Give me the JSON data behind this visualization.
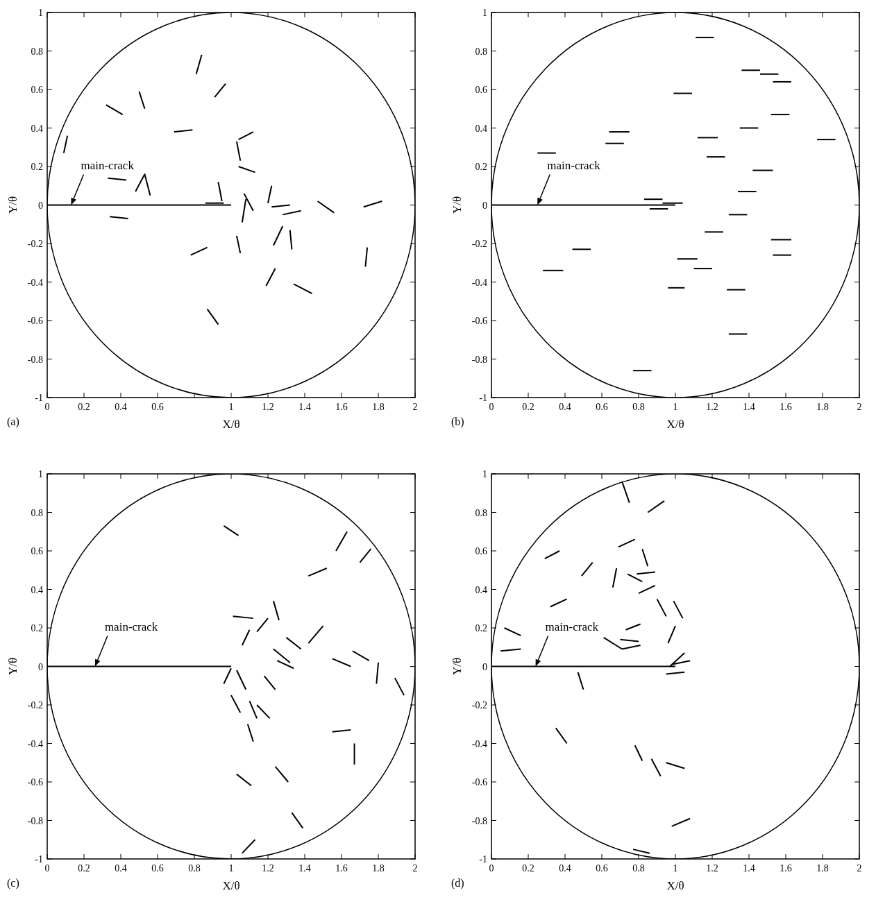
{
  "chart_data": [
    {
      "type": "line",
      "xlabel": "X/θ",
      "ylabel": "Y/θ",
      "xlim": [
        0,
        2
      ],
      "ylim": [
        -1,
        1
      ],
      "xticks": [
        0,
        0.2,
        0.4,
        0.6,
        {
          "value": 0.8,
          "label": null
        },
        1,
        1.2,
        1.4,
        1.6,
        1.8,
        2
      ],
      "yticks": [
        -1,
        -0.8,
        -0.6,
        -0.4,
        -0.2,
        0,
        0.2,
        0.4,
        0.6,
        0.8,
        1
      ],
      "series": [
        {
          "color": "#000000",
          "x": [
            0,
            1
          ],
          "values": [
            0,
            0
          ]
        },
        {
          "color": "#000000",
          "x": [
            0.81,
            0.84
          ],
          "values": [
            0.68,
            0.78
          ]
        },
        {
          "color": "#000000",
          "x": [
            0.91,
            0.97
          ],
          "values": [
            0.56,
            0.63
          ]
        },
        {
          "color": "#000000",
          "x": [
            0.5,
            0.53
          ],
          "values": [
            0.59,
            0.5
          ]
        },
        {
          "color": "#000000",
          "x": [
            0.32,
            0.41
          ],
          "values": [
            0.52,
            0.47
          ]
        },
        {
          "color": "#000000",
          "x": [
            0.69,
            0.79
          ],
          "values": [
            0.38,
            0.39
          ]
        },
        {
          "color": "#000000",
          "x": [
            1.04,
            1.12
          ],
          "values": [
            0.34,
            0.38
          ]
        },
        {
          "color": "#000000",
          "x": [
            1.03,
            1.05
          ],
          "values": [
            0.33,
            0.23
          ]
        },
        {
          "color": "#000000",
          "x": [
            1.04,
            1.13
          ],
          "values": [
            0.2,
            0.17
          ]
        },
        {
          "color": "#000000",
          "x": [
            0.11,
            0.09
          ],
          "values": [
            0.36,
            0.27
          ]
        },
        {
          "color": "#000000",
          "x": [
            0.33,
            0.43
          ],
          "values": [
            0.14,
            0.13
          ]
        },
        {
          "color": "#000000",
          "x": [
            0.48,
            0.53,
            0.56
          ],
          "values": [
            0.07,
            0.16,
            0.05
          ]
        },
        {
          "color": "#000000",
          "x": [
            0.93,
            0.95
          ],
          "values": [
            0.12,
            0.02
          ]
        },
        {
          "color": "#000000",
          "x": [
            0.86,
            0.96
          ],
          "values": [
            0.01,
            0.01
          ]
        },
        {
          "color": "#000000",
          "x": [
            0.34,
            0.44
          ],
          "values": [
            -0.06,
            -0.07
          ]
        },
        {
          "color": "#000000",
          "x": [
            1.07,
            1.12
          ],
          "values": [
            0.06,
            -0.03
          ]
        },
        {
          "color": "#000000",
          "x": [
            1.08,
            1.06
          ],
          "values": [
            0.03,
            -0.09
          ]
        },
        {
          "color": "#000000",
          "x": [
            1.22,
            1.2
          ],
          "values": [
            0.1,
            0.01
          ]
        },
        {
          "color": "#000000",
          "x": [
            1.22,
            1.32
          ],
          "values": [
            -0.01,
            0
          ]
        },
        {
          "color": "#000000",
          "x": [
            1.28,
            1.38
          ],
          "values": [
            -0.05,
            -0.03
          ]
        },
        {
          "color": "#000000",
          "x": [
            1.47,
            1.56
          ],
          "values": [
            0.02,
            -0.04
          ]
        },
        {
          "color": "#000000",
          "x": [
            1.72,
            1.82
          ],
          "values": [
            -0.01,
            0.02
          ]
        },
        {
          "color": "#000000",
          "x": [
            1.03,
            1.05
          ],
          "values": [
            -0.16,
            -0.25
          ]
        },
        {
          "color": "#000000",
          "x": [
            0.78,
            0.87
          ],
          "values": [
            -0.26,
            -0.22
          ]
        },
        {
          "color": "#000000",
          "x": [
            1.28,
            1.23
          ],
          "values": [
            -0.11,
            -0.21
          ]
        },
        {
          "color": "#000000",
          "x": [
            1.32,
            1.33
          ],
          "values": [
            -0.13,
            -0.23
          ]
        },
        {
          "color": "#000000",
          "x": [
            1.74,
            1.73
          ],
          "values": [
            -0.22,
            -0.32
          ]
        },
        {
          "color": "#000000",
          "x": [
            1.24,
            1.19
          ],
          "values": [
            -0.33,
            -0.42
          ]
        },
        {
          "color": "#000000",
          "x": [
            1.34,
            1.44
          ],
          "values": [
            -0.41,
            -0.46
          ]
        },
        {
          "color": "#000000",
          "x": [
            0.87,
            0.93
          ],
          "values": [
            -0.54,
            -0.62
          ]
        }
      ],
      "annotations": [
        {
          "text": "main-crack",
          "x": 0.13,
          "y": 0
        },
        "(a)"
      ]
    },
    {
      "type": "line",
      "xlabel": "X/θ",
      "ylabel": "Y/θ",
      "xlim": [
        0,
        2
      ],
      "ylim": [
        -1,
        1
      ],
      "xticks": [
        0,
        0.2,
        0.4,
        0.6,
        0.8,
        1,
        1.2,
        1.4,
        1.6,
        1.8,
        2
      ],
      "yticks": [
        -1,
        -0.8,
        -0.6,
        -0.4,
        -0.2,
        0,
        0.2,
        0.4,
        0.6,
        0.8,
        1
      ],
      "series": [
        {
          "color": "#000000",
          "x": [
            0,
            1
          ],
          "values": [
            0,
            0
          ]
        },
        {
          "color": "#000000",
          "x": [
            1.11,
            1.21
          ],
          "values": [
            0.87,
            0.87
          ]
        },
        {
          "color": "#000000",
          "x": [
            1.36,
            1.46
          ],
          "values": [
            0.7,
            0.7
          ]
        },
        {
          "color": "#000000",
          "x": [
            1.46,
            1.56
          ],
          "values": [
            0.68,
            0.68
          ]
        },
        {
          "color": "#000000",
          "x": [
            1.53,
            1.63
          ],
          "values": [
            0.64,
            0.64
          ]
        },
        {
          "color": "#000000",
          "x": [
            0.99,
            1.09
          ],
          "values": [
            0.58,
            0.58
          ]
        },
        {
          "color": "#000000",
          "x": [
            1.52,
            1.62
          ],
          "values": [
            0.47,
            0.47
          ]
        },
        {
          "color": "#000000",
          "x": [
            0.64,
            0.75
          ],
          "values": [
            0.38,
            0.38
          ]
        },
        {
          "color": "#000000",
          "x": [
            1.35,
            1.45
          ],
          "values": [
            0.4,
            0.4
          ]
        },
        {
          "color": "#000000",
          "x": [
            1.12,
            1.23
          ],
          "values": [
            0.35,
            0.35
          ]
        },
        {
          "color": "#000000",
          "x": [
            0.62,
            0.72
          ],
          "values": [
            0.32,
            0.32
          ]
        },
        {
          "color": "#000000",
          "x": [
            1.77,
            1.87
          ],
          "values": [
            0.34,
            0.34
          ]
        },
        {
          "color": "#000000",
          "x": [
            0.25,
            0.35
          ],
          "values": [
            0.27,
            0.27
          ]
        },
        {
          "color": "#000000",
          "x": [
            1.17,
            1.27
          ],
          "values": [
            0.25,
            0.25
          ]
        },
        {
          "color": "#000000",
          "x": [
            1.42,
            1.53
          ],
          "values": [
            0.18,
            0.18
          ]
        },
        {
          "color": "#000000",
          "x": [
            1.34,
            1.44
          ],
          "values": [
            0.07,
            0.07
          ]
        },
        {
          "color": "#000000",
          "x": [
            0.83,
            0.93
          ],
          "values": [
            0.03,
            0.03
          ]
        },
        {
          "color": "#000000",
          "x": [
            0.93,
            1.04
          ],
          "values": [
            0.01,
            0.01
          ]
        },
        {
          "color": "#000000",
          "x": [
            0.86,
            0.96
          ],
          "values": [
            -0.02,
            -0.02
          ]
        },
        {
          "color": "#000000",
          "x": [
            1.29,
            1.39
          ],
          "values": [
            -0.05,
            -0.05
          ]
        },
        {
          "color": "#000000",
          "x": [
            1.16,
            1.26
          ],
          "values": [
            -0.14,
            -0.14
          ]
        },
        {
          "color": "#000000",
          "x": [
            1.52,
            1.63
          ],
          "values": [
            -0.18,
            -0.18
          ]
        },
        {
          "color": "#000000",
          "x": [
            0.44,
            0.54
          ],
          "values": [
            -0.23,
            -0.23
          ]
        },
        {
          "color": "#000000",
          "x": [
            1.53,
            1.63
          ],
          "values": [
            -0.26,
            -0.26
          ]
        },
        {
          "color": "#000000",
          "x": [
            1.01,
            1.12
          ],
          "values": [
            -0.28,
            -0.28
          ]
        },
        {
          "color": "#000000",
          "x": [
            0.28,
            0.39
          ],
          "values": [
            -0.34,
            -0.34
          ]
        },
        {
          "color": "#000000",
          "x": [
            1.1,
            1.2
          ],
          "values": [
            -0.33,
            -0.33
          ]
        },
        {
          "color": "#000000",
          "x": [
            0.96,
            1.05
          ],
          "values": [
            -0.43,
            -0.43
          ]
        },
        {
          "color": "#000000",
          "x": [
            1.28,
            1.38
          ],
          "values": [
            -0.44,
            -0.44
          ]
        },
        {
          "color": "#000000",
          "x": [
            1.29,
            1.39
          ],
          "values": [
            -0.67,
            -0.67
          ]
        },
        {
          "color": "#000000",
          "x": [
            0.77,
            0.87
          ],
          "values": [
            -0.86,
            -0.86
          ]
        }
      ],
      "annotations": [
        {
          "text": "main-crack",
          "x": 0.25,
          "y": 0
        },
        "(b)"
      ]
    },
    {
      "type": "line",
      "xlabel": "X/θ",
      "ylabel": "Y/θ",
      "xlim": [
        0,
        2
      ],
      "ylim": [
        -1,
        1
      ],
      "xticks": [
        0,
        0.2,
        0.4,
        0.6,
        0.8,
        1,
        1.2,
        1.4,
        1.6,
        1.8,
        2
      ],
      "yticks": [
        -1,
        -0.8,
        -0.6,
        -0.4,
        -0.2,
        0,
        0.2,
        0.4,
        0.6,
        0.8,
        1
      ],
      "series": [
        {
          "color": "#000000",
          "x": [
            0,
            1
          ],
          "values": [
            0,
            0
          ]
        },
        {
          "color": "#000000",
          "x": [
            0.96,
            1.04
          ],
          "values": [
            0.73,
            0.68
          ]
        },
        {
          "color": "#000000",
          "x": [
            1.57,
            1.63
          ],
          "values": [
            0.6,
            0.7
          ]
        },
        {
          "color": "#000000",
          "x": [
            1.7,
            1.76
          ],
          "values": [
            0.54,
            0.61
          ]
        },
        {
          "color": "#000000",
          "x": [
            1.42,
            1.52
          ],
          "values": [
            0.47,
            0.51
          ]
        },
        {
          "color": "#000000",
          "x": [
            1.23,
            1.26
          ],
          "values": [
            0.34,
            0.24
          ]
        },
        {
          "color": "#000000",
          "x": [
            1.01,
            1.12
          ],
          "values": [
            0.26,
            0.25
          ]
        },
        {
          "color": "#000000",
          "x": [
            1.14,
            1.2
          ],
          "values": [
            0.18,
            0.25
          ]
        },
        {
          "color": "#000000",
          "x": [
            1.06,
            1.1
          ],
          "values": [
            0.11,
            0.19
          ]
        },
        {
          "color": "#000000",
          "x": [
            1.42,
            1.5
          ],
          "values": [
            0.12,
            0.21
          ]
        },
        {
          "color": "#000000",
          "x": [
            1.3,
            1.38
          ],
          "values": [
            0.15,
            0.09
          ]
        },
        {
          "color": "#000000",
          "x": [
            1.23,
            1.32
          ],
          "values": [
            0.09,
            0.02
          ]
        },
        {
          "color": "#000000",
          "x": [
            1.25,
            1.34
          ],
          "values": [
            0.03,
            -0.01
          ]
        },
        {
          "color": "#000000",
          "x": [
            1.55,
            1.65
          ],
          "values": [
            0.04,
            0
          ]
        },
        {
          "color": "#000000",
          "x": [
            1.66,
            1.75
          ],
          "values": [
            0.08,
            0.03
          ]
        },
        {
          "color": "#000000",
          "x": [
            1.8,
            1.79
          ],
          "values": [
            0.02,
            -0.09
          ]
        },
        {
          "color": "#000000",
          "x": [
            1.89,
            1.94
          ],
          "values": [
            -0.06,
            -0.15
          ]
        },
        {
          "color": "#000000",
          "x": [
            1,
            0.96
          ],
          "values": [
            -0.01,
            -0.09
          ]
        },
        {
          "color": "#000000",
          "x": [
            1.03,
            1.08
          ],
          "values": [
            -0.02,
            -0.12
          ]
        },
        {
          "color": "#000000",
          "x": [
            1.18,
            1.24
          ],
          "values": [
            -0.05,
            -0.12
          ]
        },
        {
          "color": "#000000",
          "x": [
            1,
            1.05
          ],
          "values": [
            -0.15,
            -0.24
          ]
        },
        {
          "color": "#000000",
          "x": [
            1.1,
            1.14
          ],
          "values": [
            -0.18,
            -0.27
          ]
        },
        {
          "color": "#000000",
          "x": [
            1.14,
            1.21
          ],
          "values": [
            -0.2,
            -0.27
          ]
        },
        {
          "color": "#000000",
          "x": [
            1.09,
            1.12
          ],
          "values": [
            -0.3,
            -0.39
          ]
        },
        {
          "color": "#000000",
          "x": [
            1.55,
            1.65
          ],
          "values": [
            -0.34,
            -0.33
          ]
        },
        {
          "color": "#000000",
          "x": [
            1.67,
            1.67
          ],
          "values": [
            -0.4,
            -0.51
          ]
        },
        {
          "color": "#000000",
          "x": [
            1.03,
            1.11
          ],
          "values": [
            -0.56,
            -0.62
          ]
        },
        {
          "color": "#000000",
          "x": [
            1.24,
            1.31
          ],
          "values": [
            -0.52,
            -0.6
          ]
        },
        {
          "color": "#000000",
          "x": [
            1.33,
            1.39
          ],
          "values": [
            -0.76,
            -0.84
          ]
        },
        {
          "color": "#000000",
          "x": [
            1.06,
            1.13
          ],
          "values": [
            -0.97,
            -0.9
          ]
        }
      ],
      "annotations": [
        {
          "text": "main-crack",
          "x": 0.26,
          "y": 0
        },
        "(c)"
      ]
    },
    {
      "type": "line",
      "xlabel": "X/θ",
      "ylabel": "Y/θ",
      "xlim": [
        0,
        2
      ],
      "ylim": [
        -1,
        1
      ],
      "xticks": [
        0,
        0.2,
        0.4,
        0.6,
        0.8,
        1,
        1.2,
        1.4,
        1.6,
        1.8,
        2
      ],
      "yticks": [
        -1,
        -0.8,
        -0.6,
        -0.4,
        -0.2,
        0,
        0.2,
        0.4,
        0.6,
        0.8,
        1
      ],
      "series": [
        {
          "color": "#000000",
          "x": [
            0,
            1
          ],
          "values": [
            0,
            0
          ]
        },
        {
          "color": "#000000",
          "x": [
            0.71,
            0.75
          ],
          "values": [
            0.96,
            0.85
          ]
        },
        {
          "color": "#000000",
          "x": [
            0.85,
            0.94
          ],
          "values": [
            0.8,
            0.86
          ]
        },
        {
          "color": "#000000",
          "x": [
            0.69,
            0.78
          ],
          "values": [
            0.62,
            0.66
          ]
        },
        {
          "color": "#000000",
          "x": [
            0.29,
            0.37
          ],
          "values": [
            0.56,
            0.6
          ]
        },
        {
          "color": "#000000",
          "x": [
            0.49,
            0.55
          ],
          "values": [
            0.47,
            0.54
          ]
        },
        {
          "color": "#000000",
          "x": [
            0.82,
            0.85
          ],
          "values": [
            0.61,
            0.52
          ]
        },
        {
          "color": "#000000",
          "x": [
            0.68,
            0.66
          ],
          "values": [
            0.51,
            0.41
          ]
        },
        {
          "color": "#000000",
          "x": [
            0.74,
            0.82
          ],
          "values": [
            0.48,
            0.44
          ]
        },
        {
          "color": "#000000",
          "x": [
            0.79,
            0.89
          ],
          "values": [
            0.48,
            0.49
          ]
        },
        {
          "color": "#000000",
          "x": [
            0.8,
            0.89
          ],
          "values": [
            0.38,
            0.42
          ]
        },
        {
          "color": "#000000",
          "x": [
            0.32,
            0.41
          ],
          "values": [
            0.31,
            0.35
          ]
        },
        {
          "color": "#000000",
          "x": [
            0.9,
            0.95
          ],
          "values": [
            0.35,
            0.26
          ]
        },
        {
          "color": "#000000",
          "x": [
            0.99,
            1.04
          ],
          "values": [
            0.34,
            0.25
          ]
        },
        {
          "color": "#000000",
          "x": [
            0.07,
            0.16
          ],
          "values": [
            0.2,
            0.16
          ]
        },
        {
          "color": "#000000",
          "x": [
            0.05,
            0.16
          ],
          "values": [
            0.08,
            0.09
          ]
        },
        {
          "color": "#000000",
          "x": [
            0.73,
            0.81
          ],
          "values": [
            0.19,
            0.22
          ]
        },
        {
          "color": "#000000",
          "x": [
            1,
            0.96
          ],
          "values": [
            0.21,
            0.12
          ]
        },
        {
          "color": "#000000",
          "x": [
            0.61,
            0.71
          ],
          "values": [
            0.15,
            0.09
          ]
        },
        {
          "color": "#000000",
          "x": [
            0.7,
            0.8
          ],
          "values": [
            0.14,
            0.13
          ]
        },
        {
          "color": "#000000",
          "x": [
            0.71,
            0.81
          ],
          "values": [
            0.09,
            0.11
          ]
        },
        {
          "color": "#000000",
          "x": [
            0.97,
            1.05
          ],
          "values": [
            0,
            0.07
          ]
        },
        {
          "color": "#000000",
          "x": [
            0.98,
            1.08
          ],
          "values": [
            0.01,
            0.03
          ]
        },
        {
          "color": "#000000",
          "x": [
            0.95,
            1.05
          ],
          "values": [
            -0.04,
            -0.03
          ]
        },
        {
          "color": "#000000",
          "x": [
            0.47,
            0.5
          ],
          "values": [
            -0.03,
            -0.12
          ]
        },
        {
          "color": "#000000",
          "x": [
            0.35,
            0.41
          ],
          "values": [
            -0.32,
            -0.4
          ]
        },
        {
          "color": "#000000",
          "x": [
            0.78,
            0.82
          ],
          "values": [
            -0.41,
            -0.49
          ]
        },
        {
          "color": "#000000",
          "x": [
            0.87,
            0.92
          ],
          "values": [
            -0.48,
            -0.57
          ]
        },
        {
          "color": "#000000",
          "x": [
            0.95,
            1.05
          ],
          "values": [
            -0.5,
            -0.53
          ]
        },
        {
          "color": "#000000",
          "x": [
            0.98,
            1.08
          ],
          "values": [
            -0.83,
            -0.79
          ]
        },
        {
          "color": "#000000",
          "x": [
            0.77,
            0.86
          ],
          "values": [
            -0.95,
            -0.97
          ]
        }
      ],
      "annotations": [
        {
          "text": "main-crack",
          "x": 0.24,
          "y": 0
        },
        "(d)"
      ]
    }
  ]
}
